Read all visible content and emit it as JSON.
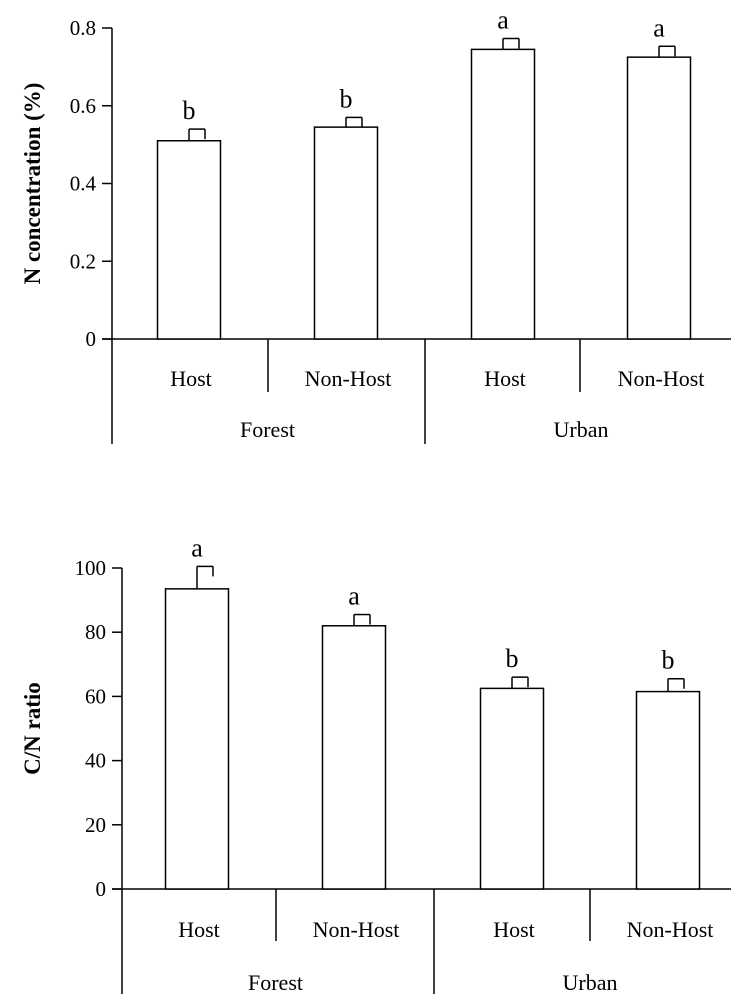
{
  "chart_data": [
    {
      "type": "bar",
      "ylabel": "N concentration (%)",
      "ylim": [
        0,
        0.8
      ],
      "yticks": [
        0,
        0.2,
        0.4,
        0.6,
        0.8
      ],
      "ytick_labels": [
        "0",
        "0.2",
        "0.4",
        "0.6",
        "0.8"
      ],
      "categories": [
        "Host",
        "Non-Host",
        "Host",
        "Non-Host"
      ],
      "groups": [
        {
          "label": "Forest",
          "categories": [
            0,
            1
          ]
        },
        {
          "label": "Urban",
          "categories": [
            2,
            3
          ]
        }
      ],
      "values": [
        0.51,
        0.545,
        0.745,
        0.725
      ],
      "errors": [
        0.03,
        0.025,
        0.028,
        0.028
      ],
      "significance": [
        "b",
        "b",
        "a",
        "a"
      ],
      "grid": false
    },
    {
      "type": "bar",
      "ylabel": "C/N ratio",
      "ylim": [
        0,
        100
      ],
      "yticks": [
        0,
        20,
        40,
        60,
        80,
        100
      ],
      "ytick_labels": [
        "0",
        "20",
        "40",
        "60",
        "80",
        "100"
      ],
      "categories": [
        "Host",
        "Non-Host",
        "Host",
        "Non-Host"
      ],
      "groups": [
        {
          "label": "Forest",
          "categories": [
            0,
            1
          ]
        },
        {
          "label": "Urban",
          "categories": [
            2,
            3
          ]
        }
      ],
      "values": [
        93.5,
        82,
        62.5,
        61.5
      ],
      "errors": [
        7,
        3.5,
        3.5,
        4
      ],
      "significance": [
        "a",
        "a",
        "b",
        "b"
      ],
      "grid": false
    }
  ]
}
